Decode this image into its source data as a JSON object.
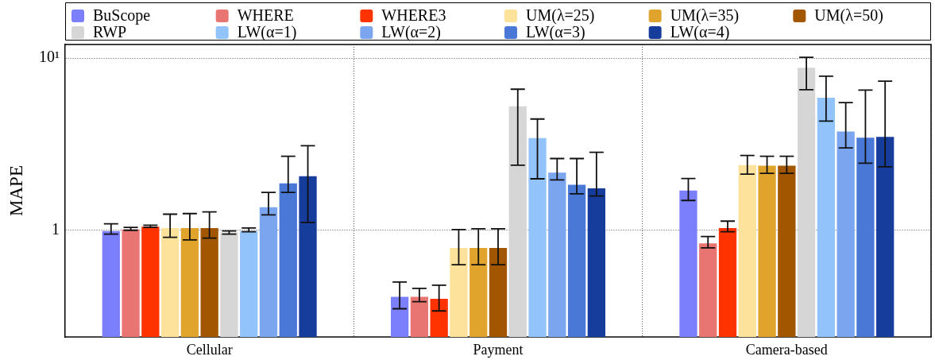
{
  "chart_data": {
    "type": "bar",
    "ylabel": "MAPE",
    "categories": [
      "Cellular",
      "Payment",
      "Camera-based"
    ],
    "log": true,
    "ylim": [
      0.24,
      12
    ],
    "yticks": [
      1,
      {
        "value": 10,
        "label": "10¹"
      }
    ],
    "grid": true,
    "legend": "top",
    "series": [
      {
        "name": "BuScope",
        "color": "#7b7ffb",
        "values": [
          0.99,
          0.41,
          1.7
        ],
        "errors": [
          [
            0.95,
            1.09
          ],
          [
            0.35,
            0.5
          ],
          [
            1.49,
            2.0
          ]
        ]
      },
      {
        "name": "WHERE",
        "color": "#e87571",
        "values": [
          1.01,
          0.41,
          0.84
        ],
        "errors": [
          [
            1.0,
            1.04
          ],
          [
            0.385,
            0.46
          ],
          [
            0.79,
            0.92
          ]
        ]
      },
      {
        "name": "WHERE3",
        "color": "#ff3300",
        "values": [
          1.05,
          0.4,
          1.03
        ],
        "errors": [
          [
            1.04,
            1.07
          ],
          [
            0.34,
            0.48
          ],
          [
            0.98,
            1.13
          ]
        ]
      },
      {
        "name": "UM(λ=25)",
        "color": "#fce29a",
        "values": [
          1.03,
          0.79,
          2.39
        ],
        "errors": [
          [
            0.91,
            1.24
          ],
          [
            0.63,
            1.01
          ],
          [
            2.12,
            2.72
          ]
        ]
      },
      {
        "name": "UM(λ=35)",
        "color": "#e0a42c",
        "values": [
          1.03,
          0.79,
          2.37
        ],
        "errors": [
          [
            0.88,
            1.25
          ],
          [
            0.63,
            1.02
          ],
          [
            2.14,
            2.69
          ]
        ]
      },
      {
        "name": "UM(λ=50)",
        "color": "#a25600",
        "values": [
          1.03,
          0.79,
          2.37
        ],
        "errors": [
          [
            0.9,
            1.28
          ],
          [
            0.63,
            1.02
          ],
          [
            2.14,
            2.69
          ]
        ]
      },
      {
        "name": "RWP",
        "color": "#d6d6d6",
        "values": [
          0.97,
          5.25,
          8.8
        ],
        "errors": [
          [
            0.95,
            0.99
          ],
          [
            2.39,
            6.6
          ],
          [
            6.56,
            10.1
          ]
        ]
      },
      {
        "name": "LW(α=1)",
        "color": "#92c3fb",
        "values": [
          0.99,
          3.43,
          5.88
        ],
        "errors": [
          [
            0.98,
            1.03
          ],
          [
            1.99,
            4.43
          ],
          [
            4.31,
            7.86
          ]
        ]
      },
      {
        "name": "LW(α=2)",
        "color": "#7ba6ef",
        "values": [
          1.36,
          2.16,
          3.75
        ],
        "errors": [
          [
            1.23,
            1.66
          ],
          [
            1.96,
            2.61
          ],
          [
            3.01,
            5.52
          ]
        ]
      },
      {
        "name": "LW(α=3)",
        "color": "#4a78d6",
        "values": [
          1.87,
          1.84,
          3.45
        ],
        "errors": [
          [
            1.66,
            2.69
          ],
          [
            1.63,
            2.61
          ],
          [
            2.45,
            6.52
          ]
        ]
      },
      {
        "name": "LW(α=4)",
        "color": "#163c9c",
        "values": [
          2.06,
          1.75,
          3.49
        ],
        "errors": [
          [
            1.11,
            3.1
          ],
          [
            1.58,
            2.84
          ],
          [
            2.34,
            7.35
          ]
        ]
      }
    ]
  }
}
